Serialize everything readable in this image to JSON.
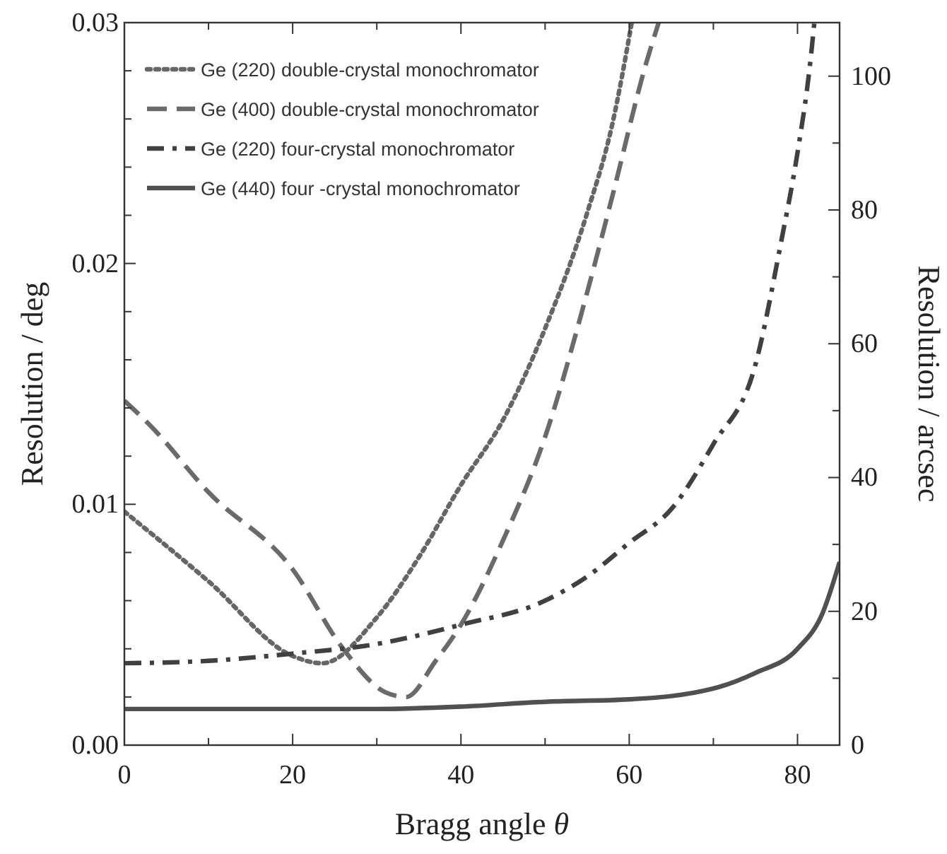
{
  "chart_data": {
    "type": "line",
    "xlabel": "Bragg angle θ",
    "ylabel": "Resolution / deg",
    "y2label": "Resolution / arcsec",
    "xlim": [
      0,
      85
    ],
    "xticks": [
      0,
      {
        "value": 10,
        "label": null
      },
      20,
      {
        "value": 30,
        "label": null
      },
      40,
      {
        "value": 50,
        "label": null
      },
      60,
      {
        "value": 70,
        "label": null
      },
      80
    ],
    "ylim": [
      0,
      0.03
    ],
    "yticks": [
      {
        "value": 0,
        "label": "0.00"
      },
      {
        "value": 0.002,
        "label": null
      },
      {
        "value": 0.004,
        "label": null
      },
      {
        "value": 0.006,
        "label": null
      },
      {
        "value": 0.008,
        "label": null
      },
      {
        "value": 0.01,
        "label": "0.01"
      },
      {
        "value": 0.012,
        "label": null
      },
      {
        "value": 0.014,
        "label": null
      },
      {
        "value": 0.016,
        "label": null
      },
      {
        "value": 0.018,
        "label": null
      },
      {
        "value": 0.02,
        "label": "0.02"
      },
      {
        "value": 0.022,
        "label": null
      },
      {
        "value": 0.024,
        "label": null
      },
      {
        "value": 0.026,
        "label": null
      },
      {
        "value": 0.028,
        "label": null
      },
      {
        "value": 0.03,
        "label": "0.03"
      }
    ],
    "y2lim": [
      0,
      108
    ],
    "y2ticks": [
      0,
      {
        "value": 10,
        "label": null
      },
      20,
      {
        "value": 30,
        "label": null
      },
      40,
      {
        "value": 50,
        "label": null
      },
      60,
      {
        "value": 70,
        "label": null
      },
      80,
      {
        "value": 90,
        "label": null
      },
      100
    ],
    "grid": false,
    "legend": "top left",
    "series": [
      {
        "name": "Ge (220) double-crystal monochromator",
        "color": "#666666",
        "line_style": "dotted",
        "x": [
          0,
          10,
          20,
          23.5,
          30,
          35,
          40,
          45,
          50,
          55,
          58,
          60.3
        ],
        "values": [
          0.0097,
          0.0068,
          0.0037,
          0.0034,
          0.0053,
          0.0078,
          0.0108,
          0.0135,
          0.0173,
          0.0221,
          0.0258,
          0.03
        ]
      },
      {
        "name": "Ge (400) double-crystal monochromator",
        "color": "#6a6a6a",
        "line_style": "dashed",
        "x": [
          0,
          3,
          10,
          20,
          26,
          31,
          33.5,
          37,
          40,
          45,
          50,
          55,
          58,
          62,
          63.5
        ],
        "values": [
          0.0143,
          0.0133,
          0.0105,
          0.0073,
          0.004,
          0.0022,
          0.002,
          0.0035,
          0.005,
          0.0085,
          0.0128,
          0.0188,
          0.0228,
          0.0283,
          0.03
        ]
      },
      {
        "name": "Ge (220) four-crystal monochromator",
        "color": "#404040",
        "line_style": "dashdot",
        "x": [
          0,
          10,
          20,
          30,
          40,
          50,
          55,
          60,
          65,
          70,
          75,
          78,
          80,
          81.5,
          82
        ],
        "values": [
          0.0034,
          0.0035,
          0.0038,
          0.0042,
          0.005,
          0.006,
          0.007,
          0.0084,
          0.0098,
          0.0125,
          0.0158,
          0.0208,
          0.0246,
          0.0283,
          0.03
        ]
      },
      {
        "name": "Ge (440) four -crystal monochromator",
        "color": "#505050",
        "line_style": "solid",
        "x": [
          0,
          10,
          20,
          30,
          40,
          50,
          60,
          70,
          75,
          80,
          83,
          85
        ],
        "values": [
          0.0015,
          0.0015,
          0.0015,
          0.0015,
          0.0016,
          0.0018,
          0.0019,
          0.00235,
          0.003,
          0.004,
          0.0055,
          0.0076
        ]
      }
    ]
  }
}
